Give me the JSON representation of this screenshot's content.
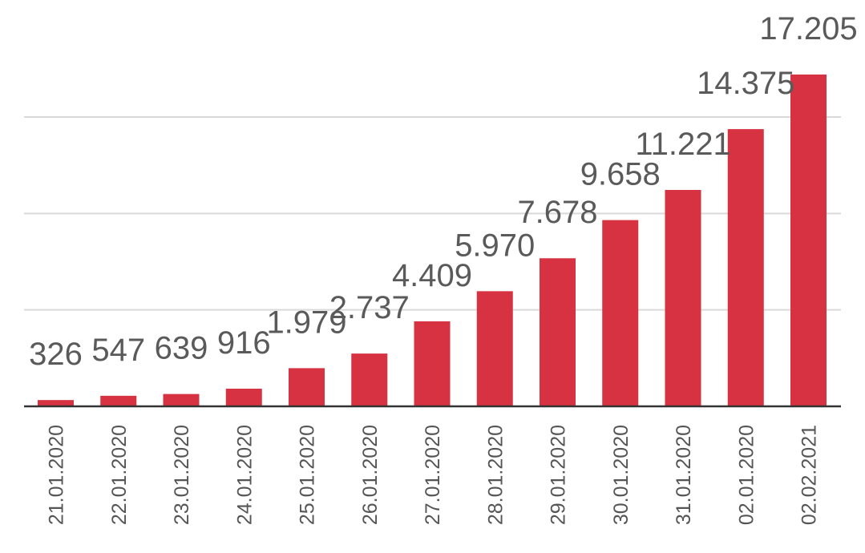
{
  "chart_data": {
    "type": "bar",
    "title": "",
    "xlabel": "",
    "ylabel": "",
    "categories": [
      "21.01.2020",
      "22.01.2020",
      "23.01.2020",
      "24.01.2020",
      "25.01.2020",
      "26.01.2020",
      "27.01.2020",
      "28.01.2020",
      "29.01.2020",
      "30.01.2020",
      "31.01.2020",
      "02.01.2020",
      "02.02.2021"
    ],
    "values": [
      326,
      547,
      639,
      916,
      1979,
      2737,
      4409,
      5970,
      7678,
      9658,
      11221,
      14375,
      17205
    ],
    "value_labels": [
      "326",
      "547",
      "639",
      "916",
      "1.979",
      "2.737",
      "4.409",
      "5.970",
      "7.678",
      "9.658",
      "11.221",
      "14.375",
      "17.205"
    ],
    "ylim": [
      0,
      17205
    ],
    "gridlines": [
      5000,
      10000,
      15000
    ],
    "grid": true,
    "legend": "none",
    "colors": {
      "bar": "#d63242",
      "grid": "#d9d9d9",
      "axis": "#333333",
      "label": "#5a5a5a"
    }
  }
}
